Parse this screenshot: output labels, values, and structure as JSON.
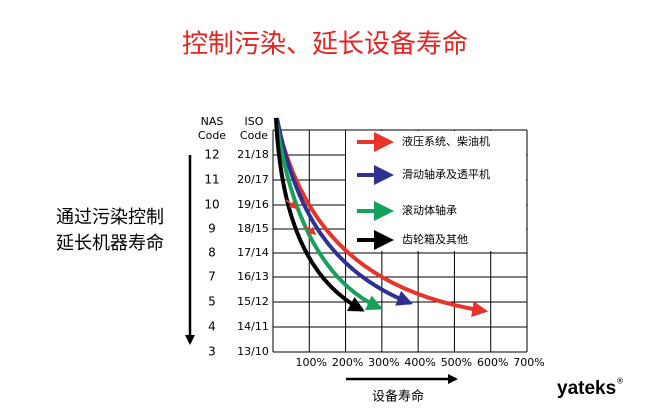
{
  "title": "控制污染、延长设备寿命",
  "side_label": [
    "通过污染控制",
    "延长机器寿命"
  ],
  "table": {
    "headers": [
      [
        "NAS",
        "Code"
      ],
      [
        "ISO",
        "Code"
      ]
    ],
    "rows": [
      [
        "12",
        "21/18"
      ],
      [
        "11",
        "20/17"
      ],
      [
        "10",
        "19/16"
      ],
      [
        "9",
        "18/15"
      ],
      [
        "8",
        "17/14"
      ],
      [
        "7",
        "16/13"
      ],
      [
        "5",
        "15/12"
      ],
      [
        "4",
        "14/11"
      ],
      [
        "3",
        "13/10"
      ]
    ]
  },
  "x_labels": [
    "100%",
    "200%",
    "300%",
    "400%",
    "500%",
    "600%",
    "700%"
  ],
  "x_axis_label": "设备寿命",
  "legend": [
    {
      "label": "液压系统、柴油机",
      "color": "#e8332a"
    },
    {
      "label": "滑动轴承及透平机",
      "color": "#2e3192"
    },
    {
      "label": "滚动体轴承",
      "color": "#16a05a"
    },
    {
      "label": "齿轮箱及其他",
      "color": "#000000"
    }
  ],
  "logo": {
    "text": "yateks",
    "mark": "®"
  }
}
